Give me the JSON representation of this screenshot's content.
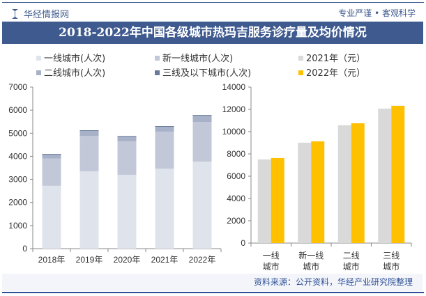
{
  "header": {
    "brand": "华经情报网",
    "slogan": "专业严谨 • 客观科学",
    "title": "2018-2022年中国各级城市热玛吉服务诊疗量及均价情况"
  },
  "legend": [
    {
      "label": "一线城市(人次)",
      "color": "#dfe3ec"
    },
    {
      "label": "新一线城市(人次)",
      "color": "#c2c8d8"
    },
    {
      "label": "2021年（元）",
      "color": "#d9d9d9"
    },
    {
      "label": "二线城市(人次)",
      "color": "#a7b1c8"
    },
    {
      "label": "三线及以下城市(人次)",
      "color": "#6b7a9b"
    },
    {
      "label": "2022年（元）",
      "color": "#ffc000"
    }
  ],
  "chart_data": [
    {
      "type": "bar",
      "stacked": true,
      "categories": [
        "2018年",
        "2019年",
        "2020年",
        "2021年",
        "2022年"
      ],
      "ylim": [
        0,
        7000
      ],
      "yticks": [
        "0",
        "1000",
        "2000",
        "3000",
        "4000",
        "5000",
        "6000",
        "7000"
      ],
      "series": [
        {
          "name": "一线城市(人次)",
          "color": "#dfe3ec",
          "values": [
            2720,
            3350,
            3200,
            3460,
            3770
          ]
        },
        {
          "name": "新一线城市(人次)",
          "color": "#c2c8d8",
          "values": [
            1180,
            1530,
            1450,
            1610,
            1720
          ]
        },
        {
          "name": "二线城市(人次)",
          "color": "#a7b1c8",
          "values": [
            180,
            230,
            210,
            220,
            280
          ]
        },
        {
          "name": "三线及以下城市(人次)",
          "color": "#6b7a9b",
          "values": [
            20,
            20,
            20,
            20,
            20
          ]
        }
      ]
    },
    {
      "type": "bar",
      "categories": [
        "一线城市",
        "新一线城市",
        "二线城市",
        "三线城市"
      ],
      "category_lines": [
        [
          "一线",
          "城市"
        ],
        [
          "新一线",
          "城市"
        ],
        [
          "二线",
          "城市"
        ],
        [
          "三线",
          "城市"
        ]
      ],
      "ylim": [
        0,
        14000
      ],
      "yticks": [
        "0",
        "2000",
        "4000",
        "6000",
        "8000",
        "10000",
        "12000",
        "14000"
      ],
      "series": [
        {
          "name": "2021年（元）",
          "color": "#d9d9d9",
          "values": [
            7510,
            9010,
            10570,
            12070
          ]
        },
        {
          "name": "2022年（元）",
          "color": "#ffc000",
          "values": [
            7630,
            9130,
            10750,
            12320
          ]
        }
      ]
    }
  ],
  "footer": {
    "source": "资料来源：公开资料，华经产业研究院整理"
  }
}
